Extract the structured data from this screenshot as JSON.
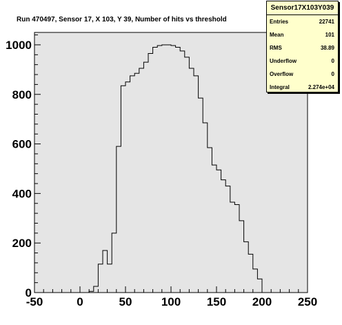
{
  "chart_data": {
    "type": "histogram",
    "title": "Run 470497, Sensor 17, X 103, Y 39, Number of hits vs threshold",
    "xlim": [
      -50,
      250
    ],
    "ylim": [
      0,
      1050
    ],
    "x_ticks": [
      -50,
      0,
      50,
      100,
      150,
      200,
      250
    ],
    "y_ticks": [
      0,
      200,
      400,
      600,
      800,
      1000
    ],
    "bin_width": 5,
    "bins": [
      {
        "x0": 10,
        "x1": 15,
        "y": 5
      },
      {
        "x0": 15,
        "x1": 20,
        "y": 25
      },
      {
        "x0": 20,
        "x1": 25,
        "y": 115
      },
      {
        "x0": 25,
        "x1": 30,
        "y": 170
      },
      {
        "x0": 30,
        "x1": 35,
        "y": 115
      },
      {
        "x0": 35,
        "x1": 40,
        "y": 240
      },
      {
        "x0": 40,
        "x1": 45,
        "y": 590
      },
      {
        "x0": 45,
        "x1": 50,
        "y": 835
      },
      {
        "x0": 50,
        "x1": 55,
        "y": 850
      },
      {
        "x0": 55,
        "x1": 60,
        "y": 875
      },
      {
        "x0": 60,
        "x1": 65,
        "y": 885
      },
      {
        "x0": 65,
        "x1": 70,
        "y": 905
      },
      {
        "x0": 70,
        "x1": 75,
        "y": 930
      },
      {
        "x0": 75,
        "x1": 80,
        "y": 965
      },
      {
        "x0": 80,
        "x1": 85,
        "y": 990
      },
      {
        "x0": 85,
        "x1": 90,
        "y": 997
      },
      {
        "x0": 90,
        "x1": 95,
        "y": 1000
      },
      {
        "x0": 95,
        "x1": 100,
        "y": 1000
      },
      {
        "x0": 100,
        "x1": 105,
        "y": 997
      },
      {
        "x0": 105,
        "x1": 110,
        "y": 990
      },
      {
        "x0": 110,
        "x1": 115,
        "y": 975
      },
      {
        "x0": 115,
        "x1": 120,
        "y": 950
      },
      {
        "x0": 120,
        "x1": 125,
        "y": 905
      },
      {
        "x0": 125,
        "x1": 130,
        "y": 875
      },
      {
        "x0": 130,
        "x1": 135,
        "y": 785
      },
      {
        "x0": 135,
        "x1": 140,
        "y": 685
      },
      {
        "x0": 140,
        "x1": 145,
        "y": 585
      },
      {
        "x0": 145,
        "x1": 150,
        "y": 515
      },
      {
        "x0": 150,
        "x1": 155,
        "y": 495
      },
      {
        "x0": 155,
        "x1": 160,
        "y": 455
      },
      {
        "x0": 160,
        "x1": 165,
        "y": 430
      },
      {
        "x0": 165,
        "x1": 170,
        "y": 365
      },
      {
        "x0": 170,
        "x1": 175,
        "y": 355
      },
      {
        "x0": 175,
        "x1": 180,
        "y": 290
      },
      {
        "x0": 180,
        "x1": 185,
        "y": 205
      },
      {
        "x0": 185,
        "x1": 190,
        "y": 155
      },
      {
        "x0": 190,
        "x1": 195,
        "y": 95
      },
      {
        "x0": 195,
        "x1": 200,
        "y": 55
      }
    ],
    "grid": false,
    "legend": "none"
  },
  "stats_box": {
    "title": "Sensor17X103Y039",
    "rows": [
      {
        "label": "Entries",
        "value": "22741"
      },
      {
        "label": "Mean",
        "value": "101"
      },
      {
        "label": "RMS",
        "value": "38.89"
      },
      {
        "label": "Underflow",
        "value": "0"
      },
      {
        "label": "Overflow",
        "value": "0"
      },
      {
        "label": "Integral",
        "value": "2.274e+04"
      }
    ]
  },
  "colors": {
    "frame_bg": "#e5e5e5",
    "stats_bg": "#ffffcc",
    "line": "#000000"
  }
}
